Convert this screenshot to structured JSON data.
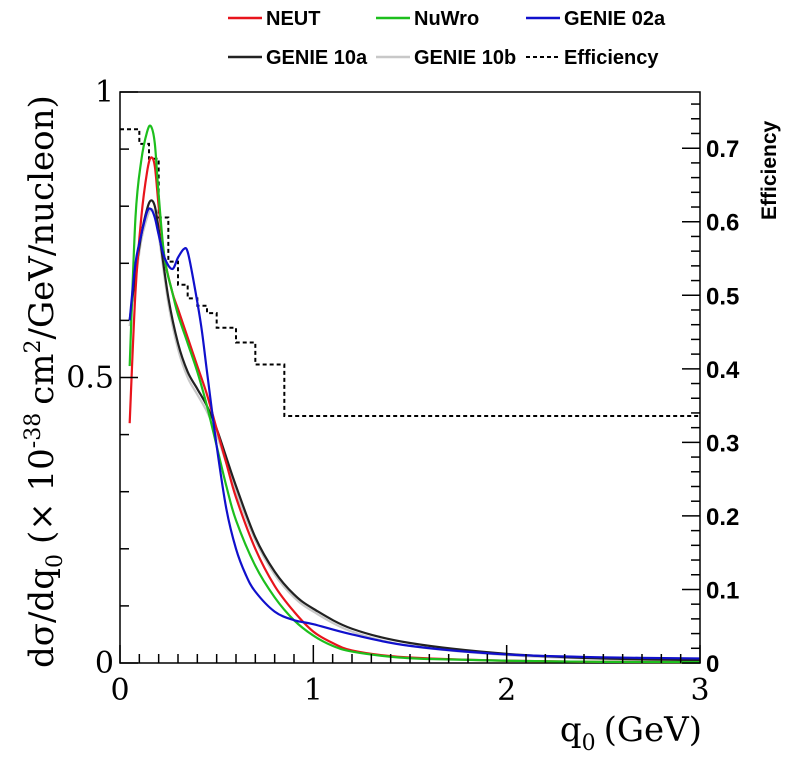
{
  "chart_data": {
    "type": "line",
    "title": "",
    "xlabel": "q",
    "xlabel_sub": "0",
    "xlabel_unit": "(GeV)",
    "ylabel_parts": {
      "d_sigma": "dσ/dq",
      "sub": "0",
      "factor": "(× 10",
      "exp": "-38",
      "unit_a": "cm",
      "unit_exp": "2",
      "unit_b": "/GeV/nucleon)"
    },
    "y2label": "Efficiency",
    "xlim": [
      0,
      3
    ],
    "ylim": [
      0,
      1.0
    ],
    "y2lim": [
      0,
      0.7764
    ],
    "x_ticks": [
      0,
      1,
      2,
      3
    ],
    "x_tick_labels": [
      "0",
      "1",
      "2",
      "3"
    ],
    "y_ticks": [
      0,
      0.5,
      1
    ],
    "y_tick_labels": [
      "0",
      "0.5",
      "1"
    ],
    "y2_ticks": [
      0,
      0.1,
      0.2,
      0.3,
      0.4,
      0.5,
      0.6,
      0.7
    ],
    "y2_tick_labels": [
      "0",
      "0.1",
      "0.2",
      "0.3",
      "0.4",
      "0.5",
      "0.6",
      "0.7"
    ],
    "grid": false,
    "legend_position": "top",
    "series": [
      {
        "name": "NEUT",
        "color": "#e8141c",
        "axis": "left",
        "x": [
          0.05,
          0.08,
          0.11,
          0.14,
          0.16,
          0.18,
          0.2,
          0.23,
          0.27,
          0.3,
          0.35,
          0.4,
          0.45,
          0.5,
          0.55,
          0.6,
          0.7,
          0.8,
          0.9,
          1.0,
          1.1,
          1.2,
          1.4,
          1.6,
          2.0,
          2.5,
          3.0
        ],
        "y": [
          0.42,
          0.65,
          0.78,
          0.86,
          0.885,
          0.87,
          0.8,
          0.71,
          0.65,
          0.62,
          0.57,
          0.52,
          0.47,
          0.41,
          0.35,
          0.29,
          0.2,
          0.135,
          0.09,
          0.055,
          0.035,
          0.022,
          0.012,
          0.008,
          0.004,
          0.002,
          0.0015
        ]
      },
      {
        "name": "NuWro",
        "color": "#1dbf1d",
        "axis": "left",
        "x": [
          0.05,
          0.08,
          0.11,
          0.14,
          0.16,
          0.18,
          0.2,
          0.23,
          0.27,
          0.3,
          0.35,
          0.4,
          0.45,
          0.5,
          0.55,
          0.6,
          0.7,
          0.8,
          0.9,
          1.0,
          1.1,
          1.2,
          1.4,
          1.6,
          2.0,
          2.5,
          3.0
        ],
        "y": [
          0.52,
          0.78,
          0.88,
          0.93,
          0.94,
          0.91,
          0.82,
          0.71,
          0.65,
          0.61,
          0.56,
          0.51,
          0.45,
          0.38,
          0.31,
          0.25,
          0.17,
          0.115,
          0.075,
          0.048,
          0.03,
          0.02,
          0.011,
          0.007,
          0.004,
          0.002,
          0.0015
        ]
      },
      {
        "name": "GENIE 02a",
        "color": "#1010cc",
        "axis": "left",
        "x": [
          0.05,
          0.08,
          0.11,
          0.14,
          0.16,
          0.18,
          0.2,
          0.23,
          0.27,
          0.3,
          0.33,
          0.35,
          0.38,
          0.42,
          0.45,
          0.5,
          0.55,
          0.6,
          0.65,
          0.7,
          0.8,
          0.9,
          1.0,
          1.2,
          1.5,
          2.0,
          2.5,
          3.0
        ],
        "y": [
          0.6,
          0.7,
          0.75,
          0.79,
          0.795,
          0.78,
          0.75,
          0.71,
          0.69,
          0.71,
          0.725,
          0.72,
          0.67,
          0.59,
          0.51,
          0.38,
          0.27,
          0.2,
          0.155,
          0.125,
          0.09,
          0.075,
          0.068,
          0.05,
          0.03,
          0.015,
          0.01,
          0.008
        ]
      },
      {
        "name": "GENIE 10a",
        "color": "#222222",
        "axis": "left",
        "x": [
          0.05,
          0.08,
          0.11,
          0.14,
          0.16,
          0.18,
          0.2,
          0.25,
          0.3,
          0.35,
          0.4,
          0.45,
          0.5,
          0.55,
          0.6,
          0.7,
          0.8,
          0.9,
          1.0,
          1.2,
          1.5,
          2.0,
          2.5,
          3.0
        ],
        "y": [
          0.6,
          0.68,
          0.75,
          0.795,
          0.81,
          0.8,
          0.76,
          0.64,
          0.56,
          0.51,
          0.48,
          0.45,
          0.41,
          0.36,
          0.31,
          0.22,
          0.16,
          0.12,
          0.095,
          0.06,
          0.035,
          0.016,
          0.008,
          0.005
        ]
      },
      {
        "name": "GENIE 10b",
        "color": "#c8c8c8",
        "axis": "left",
        "x": [
          0.05,
          0.08,
          0.11,
          0.14,
          0.16,
          0.18,
          0.2,
          0.25,
          0.3,
          0.35,
          0.4,
          0.45,
          0.5,
          0.55,
          0.6,
          0.7,
          0.8,
          0.9,
          1.0,
          1.2,
          1.5,
          2.0,
          2.5,
          3.0
        ],
        "y": [
          0.59,
          0.67,
          0.74,
          0.78,
          0.795,
          0.785,
          0.75,
          0.63,
          0.55,
          0.5,
          0.47,
          0.44,
          0.4,
          0.35,
          0.3,
          0.215,
          0.155,
          0.115,
          0.09,
          0.055,
          0.03,
          0.014,
          0.007,
          0.004
        ]
      }
    ],
    "efficiency": {
      "name": "Efficiency",
      "color": "#000000",
      "style": "dashed-step",
      "axis": "right",
      "bin_edges": [
        0,
        0.1,
        0.15,
        0.2,
        0.25,
        0.3,
        0.35,
        0.4,
        0.45,
        0.5,
        0.6,
        0.7,
        0.85,
        3.0
      ],
      "values": [
        0.7258,
        0.7058,
        0.6857,
        0.6058,
        0.5458,
        0.5144,
        0.4958,
        0.4858,
        0.4758,
        0.4558,
        0.4358,
        0.4058,
        0.3358
      ]
    },
    "legend": [
      {
        "label": "NEUT",
        "color": "#e8141c",
        "style": "solid"
      },
      {
        "label": "NuWro",
        "color": "#1dbf1d",
        "style": "solid"
      },
      {
        "label": "GENIE 02a",
        "color": "#1010cc",
        "style": "solid"
      },
      {
        "label": "GENIE 10a",
        "color": "#222222",
        "style": "solid"
      },
      {
        "label": "GENIE 10b",
        "color": "#c8c8c8",
        "style": "solid"
      },
      {
        "label": "Efficiency",
        "color": "#000000",
        "style": "dashed"
      }
    ]
  }
}
